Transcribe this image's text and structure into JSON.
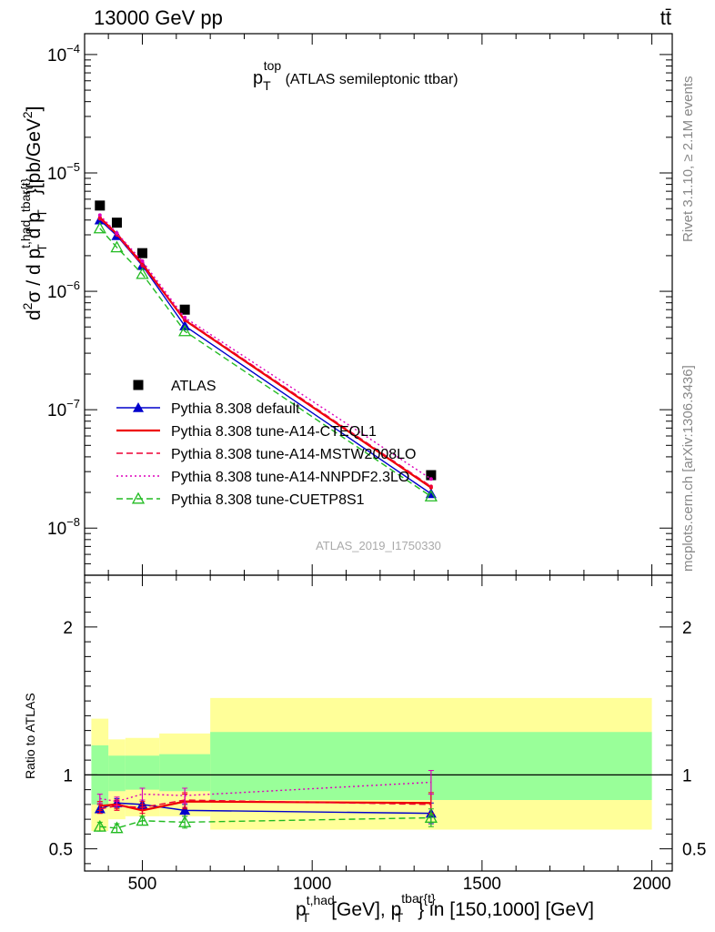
{
  "header": {
    "energy_label": "13000 GeV pp",
    "process_label": "tt̄",
    "rivet_label": "Rivet 3.1.10, ≥ 2.1M events",
    "mcplots_label": "mcplots.cern.ch [arXiv:1306.3436]",
    "analysis_id": "ATLAS_2019_I1750330"
  },
  "chart_data": [
    {
      "type": "line",
      "title": "p_T^top (ATLAS semileptonic ttbar)",
      "title_main": "p",
      "title_sub": "T",
      "title_sup": "top",
      "title_rest": " (ATLAS semileptonic ttbar)",
      "ylabel_parts": [
        "d",
        "2",
        "σ  /  d p",
        "t,had",
        "T",
        " d p",
        "tbar{t}",
        "T",
        "}[pb/GeV",
        "2",
        "]"
      ],
      "yscale": "log",
      "ylim": [
        4e-09,
        0.00015
      ],
      "xlim": [
        330,
        2060
      ],
      "yticks": [
        {
          "value": 1e-08,
          "base": "10",
          "exp": "−8"
        },
        {
          "value": 1e-07,
          "base": "10",
          "exp": "−7"
        },
        {
          "value": 1e-06,
          "base": "10",
          "exp": "−6"
        },
        {
          "value": 1e-05,
          "base": "10",
          "exp": "−5"
        },
        {
          "value": 0.0001,
          "base": "10",
          "exp": "−4"
        }
      ],
      "legend_position": "lower-left",
      "series": [
        {
          "name": "ATLAS",
          "color": "#000000",
          "style": "marker",
          "marker": "square",
          "x": [
            375,
            425,
            500,
            625,
            1350
          ],
          "y": [
            5.3e-06,
            3.8e-06,
            2.1e-06,
            7e-07,
            2.8e-08
          ]
        },
        {
          "name": "Pythia 8.308 default",
          "color": "#0000cc",
          "style": "solid",
          "marker": "triangle",
          "x": [
            375,
            425,
            500,
            625,
            1350
          ],
          "y": [
            4e-06,
            2.95e-06,
            1.65e-06,
            5.1e-07,
            1.95e-08
          ]
        },
        {
          "name": "Pythia 8.308 tune-A14-CTEQL1",
          "color": "#ee0000",
          "style": "solid",
          "marker": "none",
          "x": [
            375,
            425,
            500,
            625,
            1350
          ],
          "y": [
            4.2e-06,
            3.05e-06,
            1.7e-06,
            5.7e-07,
            2.2e-08
          ]
        },
        {
          "name": "Pythia 8.308 tune-A14-MSTW2008LO",
          "color": "#ee0033",
          "style": "dashed",
          "marker": "none",
          "x": [
            375,
            425,
            500,
            625,
            1350
          ],
          "y": [
            4.1e-06,
            3e-06,
            1.65e-06,
            5.8e-07,
            2.25e-08
          ]
        },
        {
          "name": "Pythia 8.308 tune-A14-NNPDF2.3LO",
          "color": "#dd00bb",
          "style": "dotted",
          "marker": "none",
          "x": [
            375,
            425,
            500,
            625,
            1350
          ],
          "y": [
            4.4e-06,
            3.1e-06,
            1.8e-06,
            6e-07,
            2.6e-08
          ]
        },
        {
          "name": "Pythia 8.308 tune-CUETP8S1",
          "color": "#22bb22",
          "style": "dashed",
          "marker": "open-triangle",
          "x": [
            375,
            425,
            500,
            625,
            1350
          ],
          "y": [
            3.4e-06,
            2.35e-06,
            1.4e-06,
            4.6e-07,
            1.85e-08
          ]
        }
      ]
    },
    {
      "type": "line",
      "ylabel": "Ratio to ATLAS",
      "xlabel_parts": [
        "p",
        "t,had",
        "T",
        " [GeV], p",
        "tbar{t}",
        "T",
        "} in [150,1000] [GeV]"
      ],
      "ylim": [
        0.35,
        2.35
      ],
      "xlim": [
        330,
        2060
      ],
      "xticks": [
        500,
        1000,
        1500,
        2000
      ],
      "xtick_labels": [
        "500",
        "1000",
        "1500",
        "2000"
      ],
      "yticks": [
        0.5,
        1,
        2
      ],
      "ytick_labels": [
        "0.5",
        "1",
        "2"
      ],
      "bands": [
        {
          "x0": 350,
          "x1": 400,
          "y_low": 0.62,
          "y_high": 1.38,
          "color": "#ffff99"
        },
        {
          "x0": 400,
          "x1": 450,
          "y_low": 0.7,
          "y_high": 1.24,
          "color": "#ffff99"
        },
        {
          "x0": 450,
          "x1": 550,
          "y_low": 0.72,
          "y_high": 1.25,
          "color": "#ffff99"
        },
        {
          "x0": 550,
          "x1": 700,
          "y_low": 0.72,
          "y_high": 1.28,
          "color": "#ffff99"
        },
        {
          "x0": 700,
          "x1": 2000,
          "y_low": 0.63,
          "y_high": 1.52,
          "color": "#ffff99"
        },
        {
          "x0": 350,
          "x1": 400,
          "y_low": 0.8,
          "y_high": 1.2,
          "color": "#99ff99"
        },
        {
          "x0": 400,
          "x1": 450,
          "y_low": 0.89,
          "y_high": 1.13,
          "color": "#99ff99"
        },
        {
          "x0": 450,
          "x1": 550,
          "y_low": 0.9,
          "y_high": 1.13,
          "color": "#99ff99"
        },
        {
          "x0": 550,
          "x1": 700,
          "y_low": 0.89,
          "y_high": 1.14,
          "color": "#99ff99"
        },
        {
          "x0": 700,
          "x1": 2000,
          "y_low": 0.83,
          "y_high": 1.29,
          "color": "#99ff99"
        }
      ],
      "series": [
        {
          "name": "Pythia 8.308 default",
          "color": "#0000cc",
          "style": "solid",
          "marker": "triangle",
          "x": [
            375,
            425,
            500,
            625,
            1350
          ],
          "y": [
            0.77,
            0.81,
            0.8,
            0.76,
            0.74
          ],
          "err": [
            0.03,
            0.03,
            0.03,
            0.04,
            0.07
          ]
        },
        {
          "name": "Pythia 8.308 tune-A14-CTEQL1",
          "color": "#ee0000",
          "style": "solid",
          "marker": "none",
          "x": [
            375,
            425,
            500,
            625,
            1350
          ],
          "y": [
            0.79,
            0.8,
            0.76,
            0.82,
            0.81
          ],
          "err": [
            0.03,
            0.03,
            0.04,
            0.05,
            0.07
          ]
        },
        {
          "name": "Pythia 8.308 tune-A14-MSTW2008LO",
          "color": "#ee0033",
          "style": "dashed",
          "marker": "none",
          "x": [
            375,
            425,
            500,
            625,
            1350
          ],
          "y": [
            0.77,
            0.79,
            0.78,
            0.83,
            0.8
          ],
          "err": [
            0.03,
            0.03,
            0.04,
            0.05,
            0.07
          ]
        },
        {
          "name": "Pythia 8.308 tune-A14-NNPDF2.3LO",
          "color": "#dd00bb",
          "style": "dotted",
          "marker": "none",
          "x": [
            375,
            425,
            500,
            625,
            1350
          ],
          "y": [
            0.84,
            0.82,
            0.87,
            0.86,
            0.95
          ],
          "err": [
            0.03,
            0.03,
            0.04,
            0.05,
            0.08
          ]
        },
        {
          "name": "Pythia 8.308 tune-CUETP8S1",
          "color": "#22bb22",
          "style": "dashed",
          "marker": "open-triangle",
          "x": [
            375,
            425,
            500,
            625,
            1350
          ],
          "y": [
            0.65,
            0.64,
            0.69,
            0.68,
            0.71
          ],
          "err": [
            0.03,
            0.03,
            0.03,
            0.04,
            0.06
          ]
        }
      ]
    }
  ]
}
